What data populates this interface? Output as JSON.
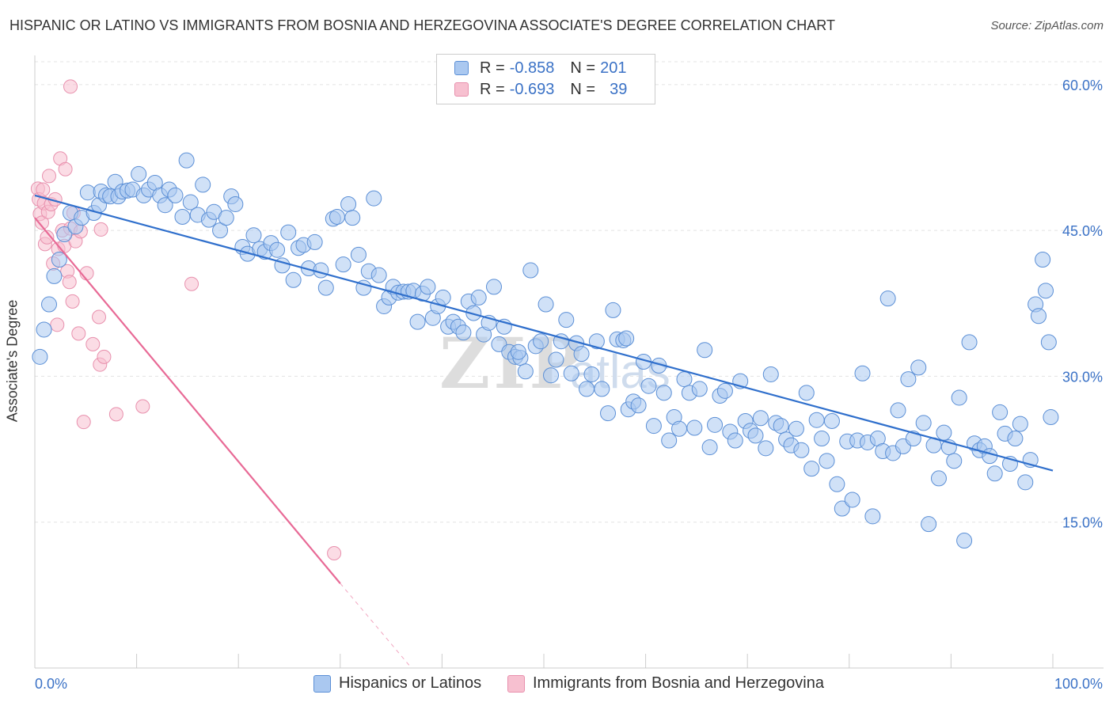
{
  "title": "HISPANIC OR LATINO VS IMMIGRANTS FROM BOSNIA AND HERZEGOVINA ASSOCIATE'S DEGREE CORRELATION CHART",
  "source": "Source: ZipAtlas.com",
  "legend_top": {
    "rows": [
      {
        "r_label": "R =",
        "r_value": "-0.858",
        "n_label": "N =",
        "n_value": "201"
      },
      {
        "r_label": "R =",
        "r_value": "-0.693",
        "n_label": "N =",
        "n_value": "39"
      }
    ]
  },
  "bottom_legend": [
    "Hispanics or Latinos",
    "Immigrants from Bosnia and Herzegovina"
  ],
  "colors": {
    "blue_fill": "#aac8f0",
    "blue_stroke": "#5b8fd6",
    "blue_line": "#2f6fcc",
    "pink_fill": "#f7c0d0",
    "pink_stroke": "#e890ad",
    "pink_line": "#e86a96",
    "grid": "#e3e3e3",
    "tick_label": "#3b72c6"
  },
  "chart_data": {
    "type": "scatter",
    "title": "HISPANIC OR LATINO VS IMMIGRANTS FROM BOSNIA AND HERZEGOVINA ASSOCIATE'S DEGREE CORRELATION CHART",
    "xlabel": "",
    "ylabel": "Associate's Degree",
    "xlim": [
      0,
      100
    ],
    "ylim": [
      0,
      63
    ],
    "x_tick_labels": [
      "0.0%",
      "100.0%"
    ],
    "y_ticks": [
      15,
      30,
      45,
      60
    ],
    "y_tick_labels": [
      "15.0%",
      "30.0%",
      "45.0%",
      "60.0%"
    ],
    "grid": true,
    "legend_position": "top-center",
    "series": [
      {
        "name": "Hispanics or Latinos",
        "r": -0.858,
        "n": 201,
        "trend": {
          "x0": 0,
          "y0": 48.6,
          "x1": 100,
          "y1": 20.3
        },
        "points": [
          [
            0.5,
            32
          ],
          [
            0.9,
            34.8
          ],
          [
            1.4,
            37.4
          ],
          [
            1.9,
            40.3
          ],
          [
            2.4,
            42
          ],
          [
            2.9,
            44.6
          ],
          [
            3.5,
            46.8
          ],
          [
            4,
            45.4
          ],
          [
            4.6,
            46.3
          ],
          [
            5.2,
            48.9
          ],
          [
            5.8,
            46.8
          ],
          [
            6.3,
            47.6
          ],
          [
            6.5,
            49
          ],
          [
            7,
            48.6
          ],
          [
            7.4,
            48.5
          ],
          [
            7.9,
            50
          ],
          [
            8.2,
            48.5
          ],
          [
            8.6,
            49
          ],
          [
            9.1,
            49.1
          ],
          [
            9.6,
            49.2
          ],
          [
            10.2,
            50.8
          ],
          [
            10.7,
            48.6
          ],
          [
            11.2,
            49.2
          ],
          [
            11.8,
            49.9
          ],
          [
            12.3,
            48.6
          ],
          [
            12.8,
            47.6
          ],
          [
            13.2,
            49.2
          ],
          [
            13.8,
            48.6
          ],
          [
            14.5,
            46.4
          ],
          [
            14.9,
            52.2
          ],
          [
            15.3,
            47.9
          ],
          [
            16,
            46.6
          ],
          [
            16.5,
            49.7
          ],
          [
            17.1,
            46.1
          ],
          [
            17.6,
            46.9
          ],
          [
            18.2,
            45
          ],
          [
            18.8,
            46.3
          ],
          [
            19.3,
            48.5
          ],
          [
            19.7,
            47.7
          ],
          [
            20.4,
            43.3
          ],
          [
            20.9,
            42.6
          ],
          [
            21.5,
            44.5
          ],
          [
            22.1,
            43.1
          ],
          [
            22.6,
            42.8
          ],
          [
            23.2,
            43.7
          ],
          [
            23.8,
            43
          ],
          [
            24.3,
            41.4
          ],
          [
            24.9,
            44.8
          ],
          [
            25.4,
            39.9
          ],
          [
            25.9,
            43.2
          ],
          [
            26.4,
            43.5
          ],
          [
            26.9,
            41.1
          ],
          [
            27.5,
            43.8
          ],
          [
            28.1,
            40.9
          ],
          [
            28.6,
            39.1
          ],
          [
            29.3,
            46.2
          ],
          [
            29.7,
            46.4
          ],
          [
            30.3,
            41.5
          ],
          [
            30.8,
            47.7
          ],
          [
            31.2,
            46.3
          ],
          [
            31.8,
            42.5
          ],
          [
            32.3,
            39.1
          ],
          [
            32.8,
            40.8
          ],
          [
            33.3,
            48.3
          ],
          [
            33.8,
            40.4
          ],
          [
            34.3,
            37.2
          ],
          [
            34.8,
            38.1
          ],
          [
            35.2,
            39.2
          ],
          [
            35.7,
            38.6
          ],
          [
            36.2,
            38.7
          ],
          [
            36.7,
            38.7
          ],
          [
            37.2,
            38.8
          ],
          [
            37.6,
            35.6
          ],
          [
            38.1,
            38.5
          ],
          [
            38.6,
            39.2
          ],
          [
            39.1,
            36
          ],
          [
            39.6,
            37.2
          ],
          [
            40.1,
            38.1
          ],
          [
            40.6,
            35.1
          ],
          [
            41.1,
            35.6
          ],
          [
            41.6,
            35.1
          ],
          [
            42.1,
            34.5
          ],
          [
            42.6,
            37.7
          ],
          [
            43.1,
            36.5
          ],
          [
            43.6,
            38.1
          ],
          [
            44.1,
            34.3
          ],
          [
            44.6,
            35.5
          ],
          [
            45.1,
            39.2
          ],
          [
            45.6,
            33.3
          ],
          [
            46.1,
            35.1
          ],
          [
            46.6,
            32.5
          ],
          [
            47.2,
            32
          ],
          [
            47.7,
            31.9
          ],
          [
            48.2,
            30.5
          ],
          [
            48.7,
            40.9
          ],
          [
            49.2,
            33.1
          ],
          [
            49.7,
            33.6
          ],
          [
            50.2,
            37.4
          ],
          [
            50.7,
            30.1
          ],
          [
            51.2,
            31.7
          ],
          [
            51.7,
            33.6
          ],
          [
            52.2,
            35.8
          ],
          [
            52.7,
            30.3
          ],
          [
            53.2,
            33.4
          ],
          [
            53.7,
            32.3
          ],
          [
            54.2,
            28.7
          ],
          [
            54.7,
            30.2
          ],
          [
            55.2,
            33.6
          ],
          [
            55.7,
            28.7
          ],
          [
            56.3,
            26.2
          ],
          [
            56.8,
            36.8
          ],
          [
            57.2,
            33.8
          ],
          [
            57.8,
            33.7
          ],
          [
            58.3,
            26.6
          ],
          [
            58.8,
            27.4
          ],
          [
            59.3,
            27
          ],
          [
            59.8,
            31.5
          ],
          [
            60.3,
            29
          ],
          [
            60.8,
            24.9
          ],
          [
            61.3,
            31.1
          ],
          [
            61.8,
            28.3
          ],
          [
            62.3,
            23.4
          ],
          [
            62.8,
            25.8
          ],
          [
            63.3,
            24.6
          ],
          [
            63.8,
            29.7
          ],
          [
            64.3,
            28.3
          ],
          [
            64.8,
            24.7
          ],
          [
            65.3,
            28.7
          ],
          [
            65.8,
            32.7
          ],
          [
            66.3,
            22.7
          ],
          [
            66.8,
            25
          ],
          [
            67.3,
            28
          ],
          [
            67.8,
            28.5
          ],
          [
            68.3,
            24.3
          ],
          [
            68.8,
            23.4
          ],
          [
            69.3,
            29.5
          ],
          [
            69.8,
            25.4
          ],
          [
            70.3,
            24.4
          ],
          [
            70.8,
            23.9
          ],
          [
            71.3,
            25.7
          ],
          [
            71.8,
            22.6
          ],
          [
            72.3,
            30.2
          ],
          [
            72.8,
            25.2
          ],
          [
            73.3,
            24.9
          ],
          [
            73.8,
            23.5
          ],
          [
            74.3,
            22.9
          ],
          [
            74.8,
            24.6
          ],
          [
            75.3,
            22.4
          ],
          [
            75.8,
            28.3
          ],
          [
            76.3,
            20.5
          ],
          [
            76.8,
            25.5
          ],
          [
            77.3,
            23.6
          ],
          [
            77.8,
            21.3
          ],
          [
            78.3,
            25.4
          ],
          [
            78.8,
            18.9
          ],
          [
            79.3,
            16.4
          ],
          [
            79.8,
            23.3
          ],
          [
            80.3,
            17.3
          ],
          [
            80.8,
            23.4
          ],
          [
            81.3,
            30.3
          ],
          [
            81.8,
            23.2
          ],
          [
            82.3,
            15.6
          ],
          [
            82.8,
            23.6
          ],
          [
            83.3,
            22.3
          ],
          [
            83.8,
            38
          ],
          [
            84.3,
            22.1
          ],
          [
            84.8,
            26.5
          ],
          [
            85.3,
            22.8
          ],
          [
            85.8,
            29.7
          ],
          [
            86.3,
            23.6
          ],
          [
            86.8,
            30.9
          ],
          [
            87.3,
            25.2
          ],
          [
            87.8,
            14.8
          ],
          [
            88.3,
            22.9
          ],
          [
            88.8,
            19.5
          ],
          [
            89.3,
            24.2
          ],
          [
            89.8,
            22.7
          ],
          [
            90.3,
            21.3
          ],
          [
            90.8,
            27.8
          ],
          [
            91.3,
            13.1
          ],
          [
            91.8,
            33.5
          ],
          [
            92.3,
            23.1
          ],
          [
            92.8,
            22.4
          ],
          [
            93.3,
            22.8
          ],
          [
            93.8,
            21.8
          ],
          [
            94.3,
            20
          ],
          [
            94.8,
            26.3
          ],
          [
            95.3,
            24.1
          ],
          [
            95.8,
            21
          ],
          [
            96.3,
            23.6
          ],
          [
            96.8,
            25.1
          ],
          [
            97.3,
            19.1
          ],
          [
            97.8,
            21.4
          ],
          [
            98.3,
            37.4
          ],
          [
            98.6,
            36.2
          ],
          [
            99,
            42
          ],
          [
            99.3,
            38.8
          ],
          [
            99.6,
            33.5
          ],
          [
            99.8,
            25.8
          ],
          [
            47.5,
            32.5
          ],
          [
            58.1,
            33.9
          ]
        ]
      },
      {
        "name": "Immigrants from Bosnia and Herzegovina",
        "r": -0.693,
        "n": 39,
        "trend": {
          "x0": 0,
          "y0": 46.3,
          "x1": 30,
          "y1": 8.7
        },
        "trend_dashed": {
          "x0": 30,
          "y0": 8.7,
          "x1": 37,
          "y1": 0
        },
        "points": [
          [
            0.3,
            49.3
          ],
          [
            0.4,
            48.2
          ],
          [
            0.5,
            46.7
          ],
          [
            0.7,
            45.8
          ],
          [
            0.9,
            47.8
          ],
          [
            0.8,
            49.2
          ],
          [
            1,
            43.6
          ],
          [
            1.2,
            44.3
          ],
          [
            1.3,
            46.9
          ],
          [
            1.4,
            50.6
          ],
          [
            1.6,
            47.7
          ],
          [
            1.8,
            41.6
          ],
          [
            2,
            48.2
          ],
          [
            2.2,
            35.3
          ],
          [
            2.3,
            43.1
          ],
          [
            2.5,
            52.4
          ],
          [
            2.7,
            45
          ],
          [
            2.9,
            43.4
          ],
          [
            3,
            51.3
          ],
          [
            3.2,
            40.8
          ],
          [
            3.4,
            39.7
          ],
          [
            3.5,
            45.2
          ],
          [
            3.7,
            37.7
          ],
          [
            3.8,
            46.8
          ],
          [
            4,
            43.9
          ],
          [
            4.3,
            34.4
          ],
          [
            4.5,
            44.9
          ],
          [
            4.8,
            25.3
          ],
          [
            5.1,
            40.6
          ],
          [
            5.7,
            33.3
          ],
          [
            3.5,
            59.8
          ],
          [
            6.3,
            36.1
          ],
          [
            6.4,
            31.2
          ],
          [
            6.8,
            32
          ],
          [
            6.5,
            45.1
          ],
          [
            8,
            26.1
          ],
          [
            10.6,
            26.9
          ],
          [
            15.4,
            39.5
          ],
          [
            29.4,
            11.8
          ]
        ]
      }
    ]
  }
}
